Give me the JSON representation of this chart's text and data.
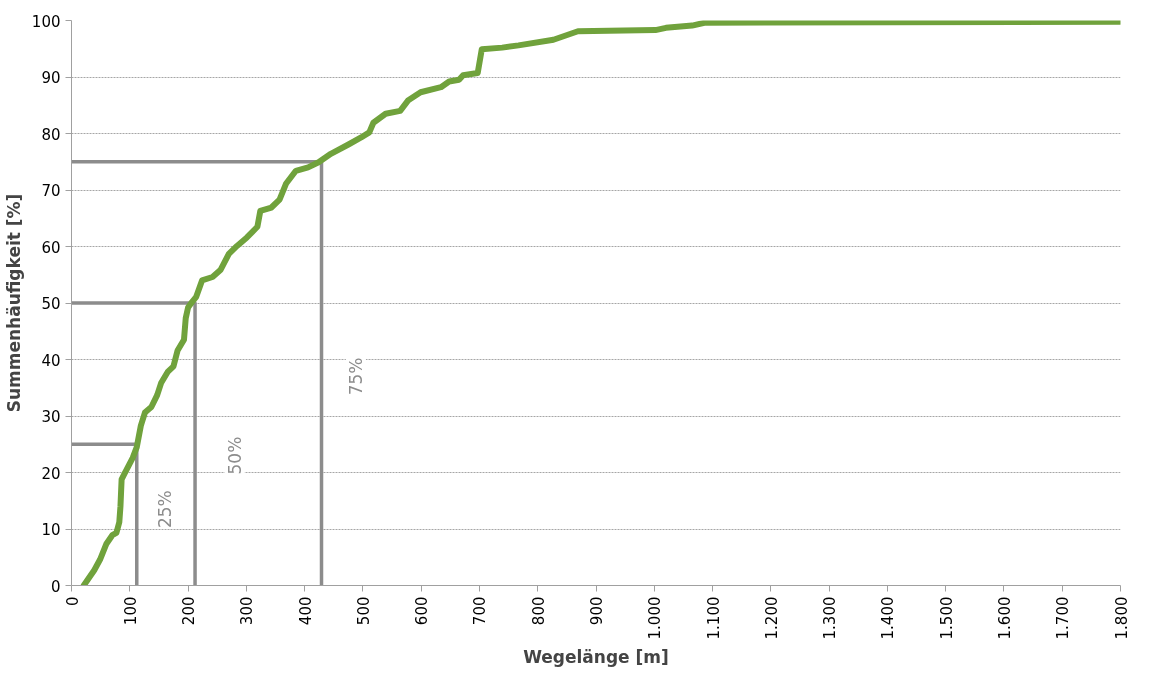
{
  "chart_data": {
    "type": "line",
    "xlabel": "Wegelänge [m]",
    "ylabel": "Summenhäufigkeit [%]",
    "xlim": [
      0,
      1800
    ],
    "ylim": [
      0,
      100
    ],
    "xticks": [
      0,
      100,
      200,
      300,
      400,
      500,
      600,
      700,
      800,
      900,
      {
        "value": 1000,
        "label": "1.000"
      },
      {
        "value": 1100,
        "label": "1.100"
      },
      {
        "value": 1200,
        "label": "1.200"
      },
      {
        "value": 1300,
        "label": "1.300"
      },
      {
        "value": 1400,
        "label": "1.400"
      },
      {
        "value": 1500,
        "label": "1.500"
      },
      {
        "value": 1600,
        "label": "1.600"
      },
      {
        "value": 1700,
        "label": "1.700"
      },
      {
        "value": 1800,
        "label": "1.800"
      }
    ],
    "yticks": [
      0,
      10,
      20,
      30,
      40,
      50,
      60,
      70,
      80,
      90,
      100
    ],
    "grid": "y",
    "marker": "none",
    "line_style": "solid",
    "series": [
      {
        "color": "#70a23c",
        "x": [
          21,
          39,
          49,
          60,
          70,
          77,
          82,
          84,
          86,
          91,
          105,
          112,
          119,
          126,
          137,
          147,
          154,
          165,
          175,
          182,
          193,
          196,
          200,
          207,
          214,
          224,
          242,
          256,
          270,
          284,
          301,
          319,
          324,
          343,
          357,
          368,
          385,
          406,
          424,
          445,
          476,
          497,
          511,
          518,
          539,
          564,
          578,
          599,
          634,
          648,
          665,
          672,
          697,
          704,
          739,
          767,
          827,
          869,
          1002,
          1020,
          1065,
          1086,
          1800
        ],
        "values": [
          0,
          2.7,
          4.6,
          7.4,
          8.9,
          9.3,
          11.2,
          14,
          18.8,
          19.8,
          22.6,
          24.5,
          28.3,
          30.6,
          31.6,
          33.7,
          35.9,
          37.8,
          38.8,
          41.6,
          43.5,
          47.3,
          49.2,
          50.2,
          51.1,
          54,
          54.6,
          55.9,
          58.7,
          60.1,
          61.6,
          63.5,
          66.3,
          66.9,
          68.3,
          71.1,
          73.4,
          74,
          74.9,
          76.4,
          78.1,
          79.3,
          80.2,
          81.9,
          83.5,
          84,
          85.9,
          87.3,
          88.2,
          89.2,
          89.5,
          90.3,
          90.7,
          94.9,
          95.2,
          95.6,
          96.6,
          98.1,
          98.3,
          98.7,
          99.1,
          99.6,
          99.8
        ]
      },
      {
        "color": "#8c8c8c",
        "x": [
          0,
          112,
          112
        ],
        "values": [
          25,
          25,
          0
        ]
      },
      {
        "color": "#8c8c8c",
        "x": [
          0,
          212,
          212
        ],
        "values": [
          50,
          50,
          0
        ]
      },
      {
        "color": "#8c8c8c",
        "x": [
          0,
          429,
          429
        ],
        "values": [
          75,
          75,
          0
        ]
      }
    ],
    "annotations": [
      {
        "text": "25%",
        "x": 161,
        "y": 13.5
      },
      {
        "text": "50%",
        "x": 280,
        "y": 23
      },
      {
        "text": "75%",
        "x": 488,
        "y": 37
      }
    ]
  }
}
